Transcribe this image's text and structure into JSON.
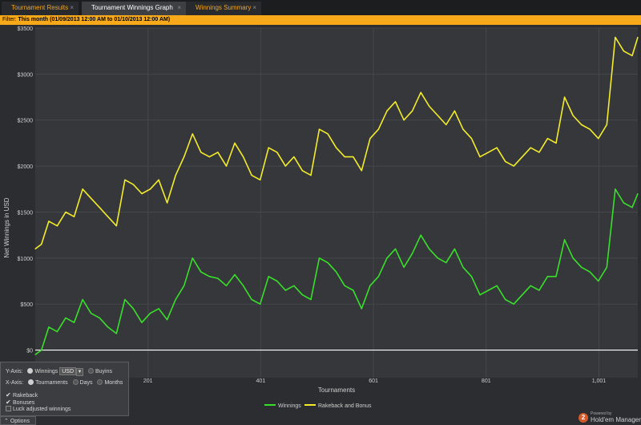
{
  "tabs": [
    {
      "label": "Tournament Results",
      "close": "×",
      "active": false
    },
    {
      "label": "Tournament Winnings Graph",
      "close": "×",
      "active": true
    },
    {
      "label": "Winnings Summary",
      "close": "×",
      "active": false
    }
  ],
  "filter": {
    "label": "Filter:",
    "value": "This month (01/09/2013 12:00 AM to 01/10/2013 12:00 AM)"
  },
  "options_panel": {
    "y_axis_label": "Y-Axis:",
    "winnings_label": "Winnings",
    "currency_value": "USD",
    "buyins_label": "Buyins",
    "x_axis_label": "X-Axis:",
    "tournaments_label": "Tournaments",
    "days_label": "Days",
    "months_label": "Months",
    "rakeback_label": "Rakeback",
    "bonuses_label": "Bonuses",
    "luck_label": "Luck adjusted winnings",
    "options_button": "Options"
  },
  "brand": {
    "powered": "Powered by",
    "name": "Hold'em Manager",
    "logo": "2"
  },
  "colors": {
    "winnings": "#39e02a",
    "rakeback_bonus": "#f4ec2a",
    "accent": "#f7a919"
  },
  "chart_data": {
    "type": "line",
    "xlabel": "Tournaments",
    "ylabel": "Net Winnings in USD",
    "ylim": [
      -300,
      3500
    ],
    "xlim": [
      1,
      1070
    ],
    "x_ticks": [
      "201",
      "401",
      "601",
      "801",
      "1,001"
    ],
    "x_tick_values": [
      201,
      401,
      601,
      801,
      1001
    ],
    "y_ticks": [
      "$3500",
      "$3000",
      "$2500",
      "$2000",
      "$1500",
      "$1000",
      "$500",
      "$0"
    ],
    "y_tick_values": [
      3500,
      3000,
      2500,
      2000,
      1500,
      1000,
      500,
      0
    ],
    "legend_position": "bottom-center",
    "series": [
      {
        "name": "Winnings",
        "x": [
          1,
          12,
          25,
          40,
          55,
          70,
          85,
          100,
          115,
          130,
          145,
          160,
          175,
          190,
          205,
          220,
          235,
          250,
          265,
          280,
          295,
          310,
          325,
          340,
          355,
          370,
          385,
          400,
          415,
          430,
          445,
          460,
          475,
          490,
          505,
          520,
          535,
          550,
          565,
          580,
          595,
          610,
          625,
          640,
          655,
          670,
          685,
          700,
          715,
          730,
          745,
          760,
          775,
          790,
          805,
          820,
          835,
          850,
          865,
          880,
          895,
          910,
          925,
          940,
          955,
          970,
          985,
          1000,
          1015,
          1030,
          1045,
          1060,
          1070
        ],
        "values": [
          -50,
          0,
          250,
          200,
          350,
          300,
          550,
          400,
          350,
          250,
          180,
          550,
          450,
          300,
          400,
          450,
          330,
          550,
          700,
          1000,
          850,
          800,
          780,
          700,
          820,
          700,
          550,
          500,
          800,
          750,
          650,
          700,
          600,
          550,
          1000,
          950,
          850,
          700,
          650,
          450,
          700,
          800,
          1000,
          1100,
          900,
          1050,
          1250,
          1100,
          1000,
          950,
          1100,
          900,
          800,
          600,
          650,
          700,
          550,
          500,
          600,
          700,
          650,
          800,
          800,
          1200,
          1000,
          900,
          850,
          750,
          900,
          1750,
          1600,
          1550,
          1700
        ]
      },
      {
        "name": "Rakeback and Bonus",
        "x": [
          1,
          12,
          25,
          40,
          55,
          70,
          85,
          100,
          115,
          130,
          145,
          160,
          175,
          190,
          205,
          220,
          235,
          250,
          265,
          280,
          295,
          310,
          325,
          340,
          355,
          370,
          385,
          400,
          415,
          430,
          445,
          460,
          475,
          490,
          505,
          520,
          535,
          550,
          565,
          580,
          595,
          610,
          625,
          640,
          655,
          670,
          685,
          700,
          715,
          730,
          745,
          760,
          775,
          790,
          805,
          820,
          835,
          850,
          865,
          880,
          895,
          910,
          925,
          940,
          955,
          970,
          985,
          1000,
          1015,
          1030,
          1045,
          1060,
          1070
        ],
        "values": [
          1100,
          1150,
          1400,
          1350,
          1500,
          1450,
          1750,
          1650,
          1550,
          1450,
          1350,
          1850,
          1800,
          1700,
          1750,
          1850,
          1600,
          1900,
          2100,
          2350,
          2150,
          2100,
          2150,
          2000,
          2250,
          2100,
          1900,
          1850,
          2200,
          2150,
          2000,
          2100,
          1950,
          1900,
          2400,
          2350,
          2200,
          2100,
          2100,
          1950,
          2300,
          2400,
          2600,
          2700,
          2500,
          2600,
          2800,
          2650,
          2550,
          2450,
          2600,
          2400,
          2300,
          2100,
          2150,
          2200,
          2050,
          2000,
          2100,
          2200,
          2150,
          2300,
          2250,
          2750,
          2550,
          2450,
          2400,
          2300,
          2450,
          3400,
          3250,
          3200,
          3400
        ]
      }
    ]
  }
}
